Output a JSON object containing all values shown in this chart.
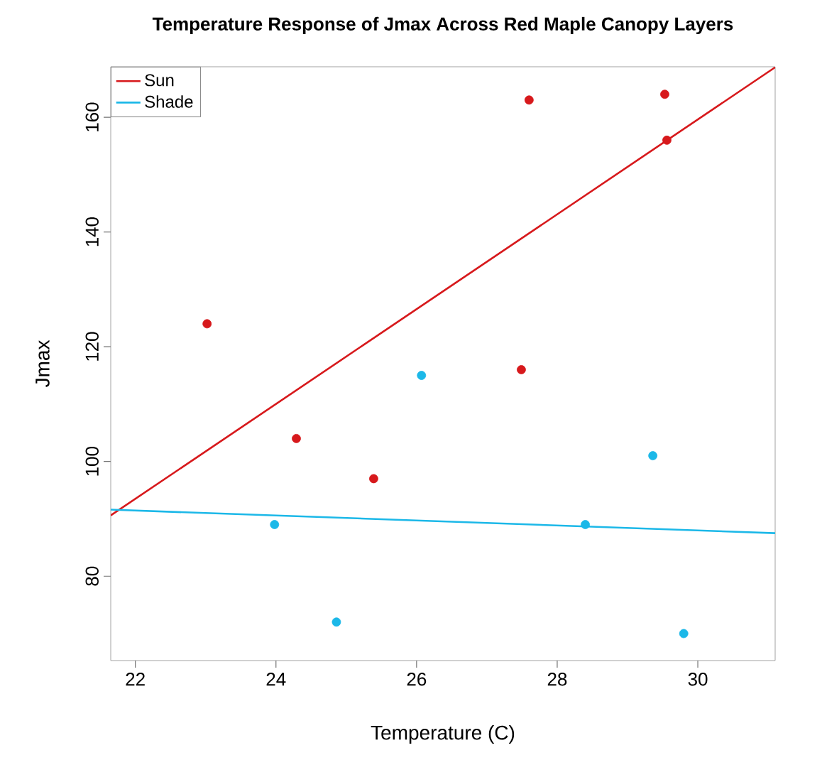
{
  "chart_data": {
    "type": "scatter",
    "title": "Temperature Response of Jmax Across Red Maple Canopy Layers",
    "xlabel": "Temperature (C)",
    "ylabel": "Jmax",
    "xlim": [
      21.65,
      31.1
    ],
    "ylim": [
      65.3,
      168.8
    ],
    "xticks": [
      22,
      24,
      26,
      28,
      30
    ],
    "yticks": [
      80,
      100,
      120,
      140,
      160
    ],
    "grid": false,
    "legend": "top left",
    "series": [
      {
        "marker": "circle",
        "color": "#d7191c",
        "x": [
          23.02,
          24.29,
          25.39,
          27.49,
          27.6,
          29.53,
          29.56
        ],
        "values": [
          124,
          104,
          97,
          116,
          163,
          164,
          156
        ]
      },
      {
        "marker": "circle",
        "color": "#1cb8e8",
        "x": [
          23.98,
          24.86,
          26.07,
          28.4,
          29.36,
          29.8
        ],
        "values": [
          89,
          72,
          115,
          89,
          101,
          70
        ]
      },
      {
        "type": "line",
        "marker": "none",
        "name": "Sun",
        "color": "#d7191c",
        "x": [
          21.65,
          31.1
        ],
        "values": [
          90.6,
          168.7
        ]
      },
      {
        "type": "line",
        "marker": "none",
        "name": "Shade",
        "color": "#1cb8e8",
        "x": [
          21.65,
          31.1
        ],
        "values": [
          91.6,
          87.5
        ]
      }
    ]
  }
}
